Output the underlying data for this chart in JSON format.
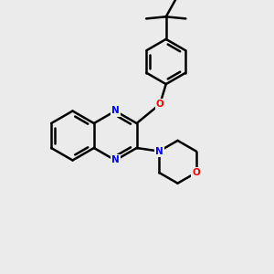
{
  "background_color": "#ebebeb",
  "bond_color": "#000000",
  "N_color": "#0000ff",
  "O_color": "#ff0000",
  "line_width": 1.8,
  "figsize": [
    3.0,
    3.0
  ],
  "dpi": 100,
  "xlim": [
    0,
    10
  ],
  "ylim": [
    0,
    10
  ]
}
